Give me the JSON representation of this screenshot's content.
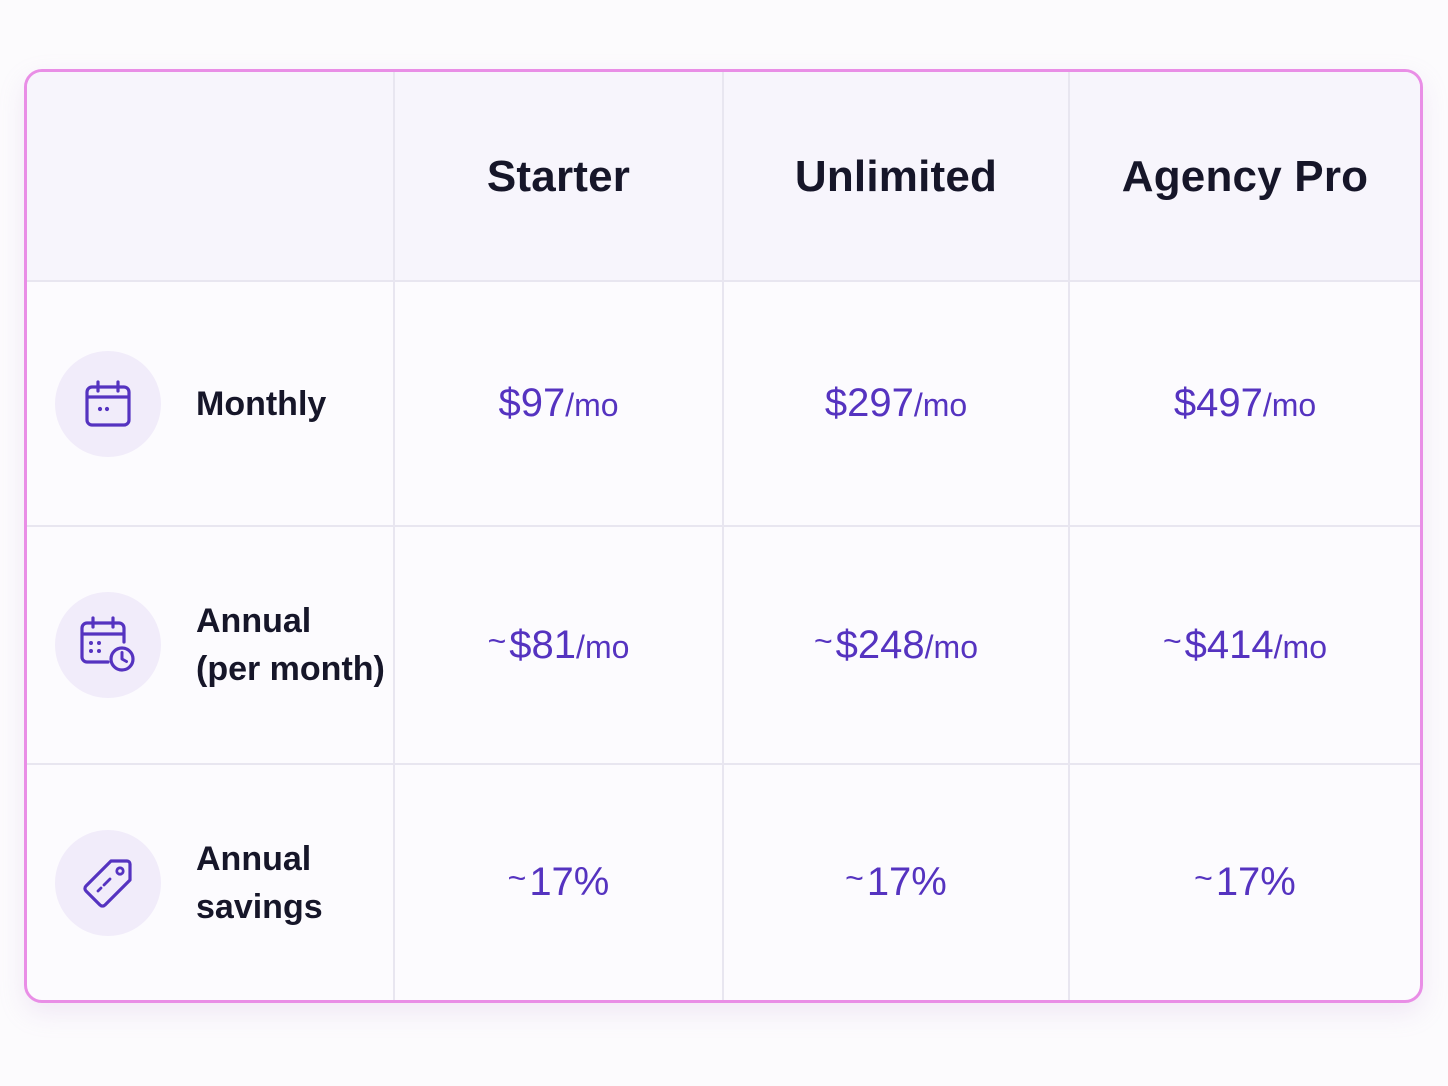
{
  "plans": [
    {
      "name": "Starter"
    },
    {
      "name": "Unlimited"
    },
    {
      "name": "Agency Pro"
    }
  ],
  "rows": [
    {
      "icon": "calendar-icon",
      "label_lines": [
        "Monthly"
      ],
      "values": [
        {
          "prefix": "",
          "amount": "$97",
          "unit": "/mo"
        },
        {
          "prefix": "",
          "amount": "$297",
          "unit": "/mo"
        },
        {
          "prefix": "",
          "amount": "$497",
          "unit": "/mo"
        }
      ]
    },
    {
      "icon": "calendar-clock-icon",
      "label_lines": [
        "Annual",
        "(per month)"
      ],
      "values": [
        {
          "prefix": "~",
          "amount": "$81",
          "unit": "/mo"
        },
        {
          "prefix": "~",
          "amount": "$248",
          "unit": "/mo"
        },
        {
          "prefix": "~",
          "amount": "$414",
          "unit": "/mo"
        }
      ]
    },
    {
      "icon": "price-tag-icon",
      "label_lines": [
        "Annual",
        "savings"
      ],
      "values": [
        {
          "prefix": "~",
          "amount": "17%",
          "unit": ""
        },
        {
          "prefix": "~",
          "amount": "17%",
          "unit": ""
        },
        {
          "prefix": "~",
          "amount": "17%",
          "unit": ""
        }
      ]
    }
  ],
  "colors": {
    "accent": "#5533c0",
    "border_highlight": "#e98ee6",
    "icon_badge_bg": "#f1ecfa",
    "text_dark": "#161629"
  }
}
